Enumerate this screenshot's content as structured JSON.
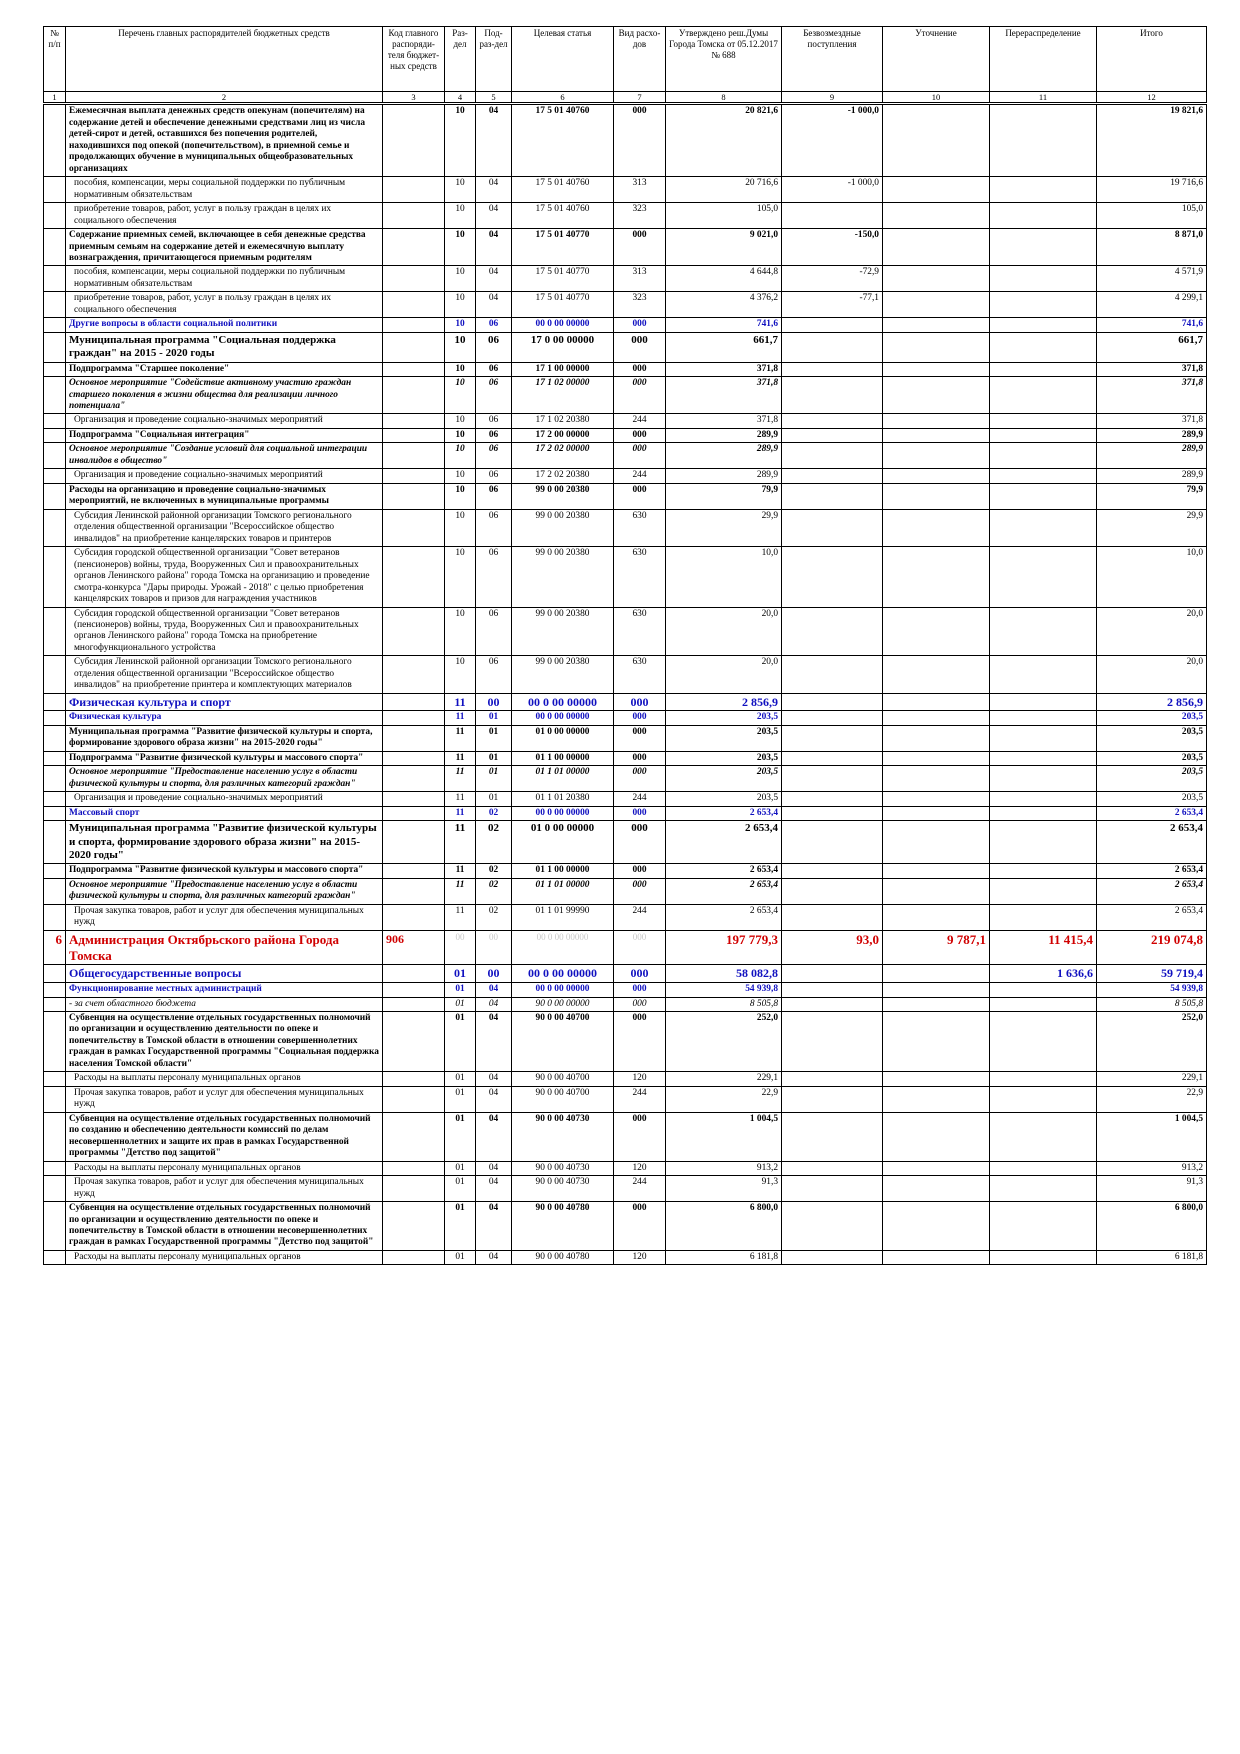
{
  "table": {
    "header": [
      "№ п/п",
      "Перечень главных распорядителей бюджетных средств",
      "Код главного распоряди-теля бюджет-ных средств",
      "Раз-дел",
      "Под-раз-дел",
      "Целевая статья",
      "Вид расхо-дов",
      "Утверждено реш.Думы Города Томска от 05.12.2017 № 688",
      "Безвозмездные поступления",
      "Уточнение",
      "Перераспределение",
      "Итого"
    ],
    "column_numbers": [
      "1",
      "2",
      "3",
      "4",
      "5",
      "6",
      "7",
      "8",
      "9",
      "10",
      "11",
      "12"
    ],
    "rows": [
      {
        "style": "b",
        "cells": [
          null,
          "Ежемесячная выплата денежных средств опекунам (попечителям) на содержание детей и обеспечение денежными средствами лиц из числа детей-сирот и детей, оставшихся без попечения родителей, находившихся под опекой (попечительством), в приемной семье и продолжающих обучение в муниципальных общеобразовательных организациях",
          null,
          "10",
          "04",
          "17 5 01 40760",
          "000",
          "20 821,6",
          "-1 000,0",
          null,
          null,
          "19 821,6"
        ]
      },
      {
        "style": "plain",
        "cells": [
          null,
          "пособия, компенсации, меры социальной поддержки по публичным нормативным обязательствам",
          null,
          "10",
          "04",
          "17 5 01 40760",
          "313",
          "20 716,6",
          "-1 000,0",
          null,
          null,
          "19 716,6"
        ]
      },
      {
        "style": "plain",
        "cells": [
          null,
          "приобретение товаров, работ, услуг в пользу граждан в целях их социального обеспечения",
          null,
          "10",
          "04",
          "17 5 01 40760",
          "323",
          "105,0",
          null,
          null,
          null,
          "105,0"
        ]
      },
      {
        "style": "b",
        "cells": [
          null,
          "Содержание приемных семей, включающее в себя денежные средства приемным семьям на содержание детей и ежемесячную выплату вознаграждения, причитающегося приемным родителям",
          null,
          "10",
          "04",
          "17 5 01 40770",
          "000",
          "9 021,0",
          "-150,0",
          null,
          null,
          "8 871,0"
        ]
      },
      {
        "style": "plain",
        "cells": [
          null,
          "пособия, компенсации, меры социальной поддержки по публичным нормативным обязательствам",
          null,
          "10",
          "04",
          "17 5 01 40770",
          "313",
          "4 644,8",
          "-72,9",
          null,
          null,
          "4 571,9"
        ]
      },
      {
        "style": "plain",
        "cells": [
          null,
          "приобретение товаров, работ, услуг в пользу граждан в целях их социального обеспечения",
          null,
          "10",
          "04",
          "17 5 01 40770",
          "323",
          "4 376,2",
          "-77,1",
          null,
          null,
          "4 299,1"
        ]
      },
      {
        "style": "blue",
        "cells": [
          null,
          "Другие вопросы в области социальной политики",
          null,
          "10",
          "06",
          "00 0 00 00000",
          "000",
          "741,6",
          null,
          null,
          null,
          "741,6"
        ]
      },
      {
        "style": "bL",
        "cells": [
          null,
          "Муниципальная программа \"Социальная поддержка граждан\" на 2015 - 2020 годы",
          null,
          "10",
          "06",
          "17 0 00 00000",
          "000",
          "661,7",
          null,
          null,
          null,
          "661,7"
        ]
      },
      {
        "style": "b",
        "cells": [
          null,
          "Подпрограмма \"Старшее поколение\"",
          null,
          "10",
          "06",
          "17 1 00 00000",
          "000",
          "371,8",
          null,
          null,
          null,
          "371,8"
        ]
      },
      {
        "style": "bi",
        "cells": [
          null,
          "Основное мероприятие \"Содействие активному участию граждан старшего поколения в жизни общества для реализации личного потенциала\"",
          null,
          "10",
          "06",
          "17 1 02 00000",
          "000",
          "371,8",
          null,
          null,
          null,
          "371,8"
        ]
      },
      {
        "style": "plain",
        "cells": [
          null,
          "Организация и проведение социально-значимых мероприятий",
          null,
          "10",
          "06",
          "17 1 02 20380",
          "244",
          "371,8",
          null,
          null,
          null,
          "371,8"
        ]
      },
      {
        "style": "b",
        "cells": [
          null,
          "Подпрограмма \"Социальная интеграция\"",
          null,
          "10",
          "06",
          "17 2 00 00000",
          "000",
          "289,9",
          null,
          null,
          null,
          "289,9"
        ]
      },
      {
        "style": "bi",
        "cells": [
          null,
          "Основное мероприятие \"Создание условий для социальной интеграции инвалидов в общество\"",
          null,
          "10",
          "06",
          "17 2 02 00000",
          "000",
          "289,9",
          null,
          null,
          null,
          "289,9"
        ]
      },
      {
        "style": "plain",
        "cells": [
          null,
          "Организация и проведение социально-значимых мероприятий",
          null,
          "10",
          "06",
          "17 2 02 20380",
          "244",
          "289,9",
          null,
          null,
          null,
          "289,9"
        ]
      },
      {
        "style": "b",
        "cells": [
          null,
          "Расходы на организацию и проведение социально-значимых мероприятий, не включенных в муниципальные программы",
          null,
          "10",
          "06",
          "99 0 00 20380",
          "000",
          "79,9",
          null,
          null,
          null,
          "79,9"
        ]
      },
      {
        "style": "plain",
        "cells": [
          null,
          "Субсидия Ленинской районной организации Томского регионального отделения общественной организации \"Всероссийское общество инвалидов\" на приобретение канцелярских товаров и принтеров",
          null,
          "10",
          "06",
          "99 0 00 20380",
          "630",
          "29,9",
          null,
          null,
          null,
          "29,9"
        ]
      },
      {
        "style": "plain",
        "cells": [
          null,
          "Субсидия городской общественной организации \"Совет ветеранов (пенсионеров) войны, труда, Вооруженных Сил и правоохранительных органов Ленинского района\" города Томска на организацию и проведение смотра-конкурса \"Дары природы. Урожай - 2018\" с целью приобретения канцелярских товаров и призов для награждения участников",
          null,
          "10",
          "06",
          "99 0 00 20380",
          "630",
          "10,0",
          null,
          null,
          null,
          "10,0"
        ]
      },
      {
        "style": "plain",
        "cells": [
          null,
          "Субсидия городской общественной организации \"Совет ветеранов (пенсионеров) войны, труда, Вооруженных Сил и правоохранительных органов Ленинского района\" города Томска на приобретение многофункционального устройства",
          null,
          "10",
          "06",
          "99 0 00 20380",
          "630",
          "20,0",
          null,
          null,
          null,
          "20,0"
        ]
      },
      {
        "style": "plain",
        "cells": [
          null,
          "Субсидия Ленинской районной организации Томского регионального отделения общественной организации \"Всероссийское общество инвалидов\" на приобретение принтера и комплектующих материалов",
          null,
          "10",
          "06",
          "99 0 00 20380",
          "630",
          "20,0",
          null,
          null,
          null,
          "20,0"
        ]
      },
      {
        "style": "blueL",
        "cells": [
          null,
          "Физическая культура и спорт",
          null,
          "11",
          "00",
          "00 0 00 00000",
          "000",
          "2 856,9",
          null,
          null,
          null,
          "2 856,9"
        ]
      },
      {
        "style": "blue",
        "cells": [
          null,
          "Физическая культура",
          null,
          "11",
          "01",
          "00 0 00 00000",
          "000",
          "203,5",
          null,
          null,
          null,
          "203,5"
        ]
      },
      {
        "style": "b",
        "cells": [
          null,
          "Муниципальная программа \"Развитие физической культуры и спорта, формирование здорового образа жизни\" на 2015-2020 годы\"",
          null,
          "11",
          "01",
          "01 0 00 00000",
          "000",
          "203,5",
          null,
          null,
          null,
          "203,5"
        ]
      },
      {
        "style": "b",
        "cells": [
          null,
          "Подпрограмма \"Развитие физической культуры и массового спорта\"",
          null,
          "11",
          "01",
          "01 1 00 00000",
          "000",
          "203,5",
          null,
          null,
          null,
          "203,5"
        ]
      },
      {
        "style": "bi",
        "cells": [
          null,
          "Основное мероприятие \"Предоставление населению услуг в области физической культуры и спорта, для различных категорий граждан\"",
          null,
          "11",
          "01",
          "01 1 01 00000",
          "000",
          "203,5",
          null,
          null,
          null,
          "203,5"
        ]
      },
      {
        "style": "plain",
        "cells": [
          null,
          "Организация и проведение социально-значимых мероприятий",
          null,
          "11",
          "01",
          "01 1 01 20380",
          "244",
          "203,5",
          null,
          null,
          null,
          "203,5"
        ]
      },
      {
        "style": "blue",
        "cells": [
          null,
          "Массовый спорт",
          null,
          "11",
          "02",
          "00 0 00 00000",
          "000",
          "2 653,4",
          null,
          null,
          null,
          "2 653,4"
        ]
      },
      {
        "style": "bL",
        "cells": [
          null,
          "Муниципальная программа \"Развитие физической культуры и спорта, формирование здорового образа жизни\" на 2015-2020 годы\"",
          null,
          "11",
          "02",
          "01 0 00 00000",
          "000",
          "2 653,4",
          null,
          null,
          null,
          "2 653,4"
        ]
      },
      {
        "style": "b",
        "cells": [
          null,
          "Подпрограмма \"Развитие физической культуры и массового спорта\"",
          null,
          "11",
          "02",
          "01 1 00 00000",
          "000",
          "2 653,4",
          null,
          null,
          null,
          "2 653,4"
        ]
      },
      {
        "style": "bi",
        "cells": [
          null,
          "Основное мероприятие \"Предоставление населению услуг в области физической культуры и спорта, для различных категорий граждан\"",
          null,
          "11",
          "02",
          "01 1 01 00000",
          "000",
          "2 653,4",
          null,
          null,
          null,
          "2 653,4"
        ]
      },
      {
        "style": "plain",
        "cells": [
          null,
          "Прочая закупка товаров, работ и услуг для обеспечения муниципальных нужд",
          null,
          "11",
          "02",
          "01 1 01 99990",
          "244",
          "2 653,4",
          null,
          null,
          null,
          "2 653,4"
        ]
      },
      {
        "style": "red",
        "cells": [
          "6",
          "Администрация Октябрьского района Города Томска",
          "906",
          "00",
          "00",
          "00 0 00 00000",
          "000",
          "197 779,3",
          "93,0",
          "9 787,1",
          "11 415,4",
          "219 074,8"
        ]
      },
      {
        "style": "blueL",
        "cells": [
          null,
          "Общегосударственные вопросы",
          null,
          "01",
          "00",
          "00 0 00 00000",
          "000",
          "58 082,8",
          null,
          null,
          "1 636,6",
          "59 719,4"
        ]
      },
      {
        "style": "blue",
        "cells": [
          null,
          "Функционирование местных администраций",
          null,
          "01",
          "04",
          "00 0 00 00000",
          "000",
          "54 939,8",
          null,
          null,
          null,
          "54 939,8"
        ]
      },
      {
        "style": "it",
        "cells": [
          null,
          "- за счет областного бюджета",
          null,
          "01",
          "04",
          "90 0 00 00000",
          "000",
          "8 505,8",
          null,
          null,
          null,
          "8 505,8"
        ]
      },
      {
        "style": "b",
        "cells": [
          null,
          "Субвенция на осуществление отдельных государственных полномочий по организации и осуществлению деятельности по опеке и попечительству в Томской области в отношении совершеннолетних граждан в рамках Государственной программы \"Социальная поддержка населения Томской области\"",
          null,
          "01",
          "04",
          "90 0 00 40700",
          "000",
          "252,0",
          null,
          null,
          null,
          "252,0"
        ]
      },
      {
        "style": "plain",
        "cells": [
          null,
          "Расходы на выплаты персоналу муниципальных органов",
          null,
          "01",
          "04",
          "90 0 00 40700",
          "120",
          "229,1",
          null,
          null,
          null,
          "229,1"
        ]
      },
      {
        "style": "plain",
        "cells": [
          null,
          "Прочая закупка товаров, работ и услуг для обеспечения муниципальных нужд",
          null,
          "01",
          "04",
          "90 0 00 40700",
          "244",
          "22,9",
          null,
          null,
          null,
          "22,9"
        ]
      },
      {
        "style": "b",
        "cells": [
          null,
          "Субвенция на осуществление отдельных государственных полномочий по созданию и обеспечению деятельности комиссий по делам несовершеннолетних и защите их прав в рамках Государственной программы \"Детство под защитой\"",
          null,
          "01",
          "04",
          "90 0 00 40730",
          "000",
          "1 004,5",
          null,
          null,
          null,
          "1 004,5"
        ]
      },
      {
        "style": "plain",
        "cells": [
          null,
          "Расходы на выплаты персоналу муниципальных органов",
          null,
          "01",
          "04",
          "90 0 00 40730",
          "120",
          "913,2",
          null,
          null,
          null,
          "913,2"
        ]
      },
      {
        "style": "plain",
        "cells": [
          null,
          "Прочая закупка товаров, работ и услуг для обеспечения муниципальных нужд",
          null,
          "01",
          "04",
          "90 0 00 40730",
          "244",
          "91,3",
          null,
          null,
          null,
          "91,3"
        ]
      },
      {
        "style": "b",
        "cells": [
          null,
          "Субвенция на осуществление отдельных государственных полномочий по организации и осуществлению деятельности по опеке и попечительству в Томской области в отношении несовершеннолетних граждан в рамках Государственной программы \"Детство под защитой\"",
          null,
          "01",
          "04",
          "90 0 00 40780",
          "000",
          "6 800,0",
          null,
          null,
          null,
          "6 800,0"
        ]
      },
      {
        "style": "plain",
        "cells": [
          null,
          "Расходы на выплаты персоналу муниципальных органов",
          null,
          "01",
          "04",
          "90 0 00 40780",
          "120",
          "6 181,8",
          null,
          null,
          null,
          "6 181,8"
        ]
      }
    ]
  }
}
